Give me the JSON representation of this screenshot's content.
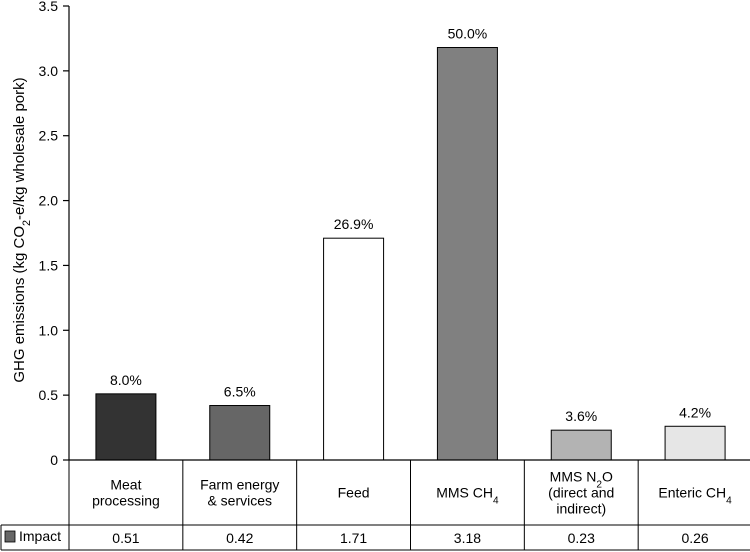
{
  "chart_data": {
    "type": "bar",
    "ylabel": "GHG emissions (kg CO2-e/kg wholesale pork)",
    "ylim": [
      0,
      3.5
    ],
    "yticks": [
      "0",
      "0.5",
      "1.0",
      "1.5",
      "2.0",
      "2.5",
      "3.0",
      "3.5"
    ],
    "grid": false,
    "categories": [
      {
        "lines": [
          "Meat",
          "processing"
        ]
      },
      {
        "lines": [
          "Farm energy",
          "& services"
        ]
      },
      {
        "lines": [
          "Feed"
        ]
      },
      {
        "lines": [
          "MMS CH4"
        ]
      },
      {
        "lines": [
          "MMS N2O",
          "(direct and",
          "indirect)"
        ]
      },
      {
        "lines": [
          "Enteric CH4"
        ]
      }
    ],
    "series": [
      {
        "name": "Impact",
        "values": [
          0.51,
          0.42,
          1.71,
          3.18,
          0.23,
          0.26
        ],
        "value_labels": [
          "0.51",
          "0.42",
          "1.71",
          "3.18",
          "0.23",
          "0.26"
        ],
        "percent_labels": [
          "8.0%",
          "6.5%",
          "26.9%",
          "50.0%",
          "3.6%",
          "4.2%"
        ],
        "colors": [
          "#333333",
          "#666666",
          "#ffffff",
          "#808080",
          "#b3b3b3",
          "#e6e6e6"
        ],
        "legend_color": "#666666"
      }
    ]
  }
}
